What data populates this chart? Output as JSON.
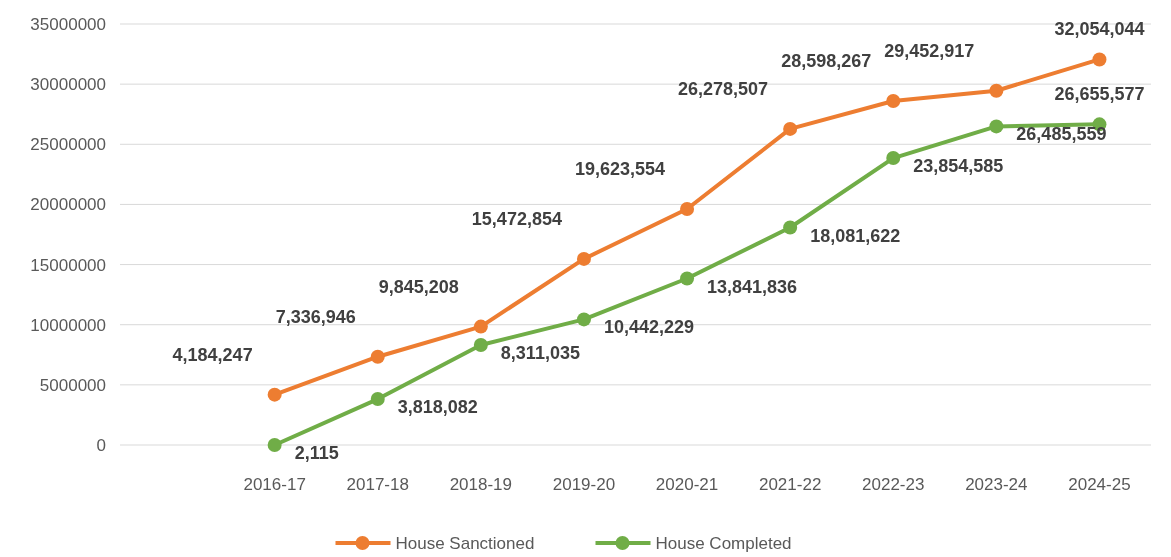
{
  "chart_data": {
    "type": "line",
    "categories": [
      null,
      "2016-17",
      "2017-18",
      "2018-19",
      "2019-20",
      "2020-21",
      "2021-22",
      "2022-23",
      "2023-24",
      "2024-25"
    ],
    "series": [
      {
        "name": "House Sanctioned",
        "color": "#ed7d31",
        "values": [
          null,
          4184247,
          7336946,
          9845208,
          15472854,
          19623554,
          26278507,
          28598267,
          29452917,
          32054044
        ],
        "value_labels": [
          null,
          "4,184,247",
          "7,336,946",
          "9,845,208",
          "15,472,854",
          "19,623,554",
          "26,278,507",
          "28,598,267",
          "29,452,917",
          "32,054,044"
        ]
      },
      {
        "name": "House Completed",
        "color": "#70ad47",
        "values": [
          null,
          2115,
          3818082,
          8311035,
          10442229,
          13841836,
          18081622,
          23854585,
          26485559,
          26655577
        ],
        "value_labels": [
          null,
          "2,115",
          "3,818,082",
          "8,311,035",
          "10,442,229",
          "13,841,836",
          "18,081,622",
          "23,854,585",
          "26,485,559",
          "26,655,577"
        ]
      }
    ],
    "ylim": [
      0,
      35000000
    ],
    "yticks": [
      0,
      5000000,
      10000000,
      15000000,
      20000000,
      25000000,
      30000000,
      35000000
    ],
    "grid": "y",
    "legend": "bottom",
    "marker": "circle",
    "line_style": "solid"
  }
}
